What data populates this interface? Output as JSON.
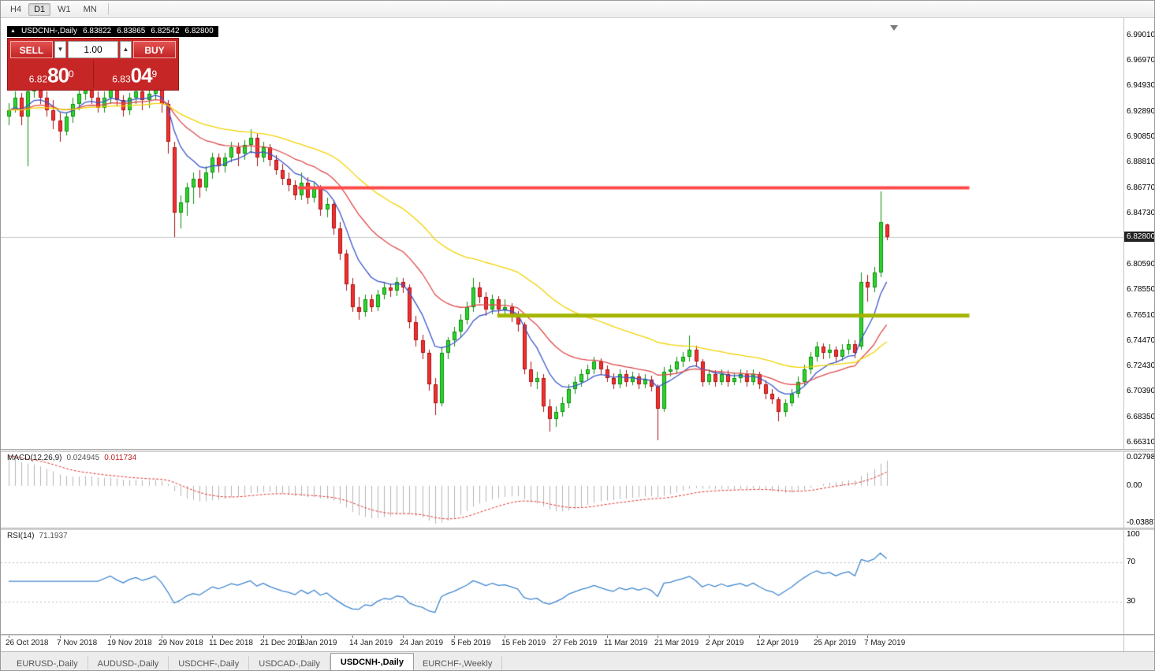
{
  "toolbar": {
    "timeframes": [
      {
        "label": "H4",
        "active": false
      },
      {
        "label": "D1",
        "active": true
      },
      {
        "label": "W1",
        "active": false
      },
      {
        "label": "MN",
        "active": false
      }
    ]
  },
  "chart": {
    "title": "USDCNH-,Daily",
    "open": "6.83822",
    "high": "6.83865",
    "low": "6.82542",
    "close": "6.82800",
    "current_price": "6.82800",
    "price_scale": [
      "6.99010",
      "6.96970",
      "6.94930",
      "6.92890",
      "6.90850",
      "6.88810",
      "6.86770",
      "6.84730",
      "6.80590",
      "6.78550",
      "6.76510",
      "6.74470",
      "6.72430",
      "6.70390",
      "6.68350",
      "6.66310"
    ]
  },
  "trade_panel": {
    "sell_label": "SELL",
    "buy_label": "BUY",
    "volume": "1.00",
    "spin_down": "▼",
    "spin_up": "▲",
    "sell": {
      "prefix": "6.82",
      "big": "80",
      "sup": "0"
    },
    "buy": {
      "prefix": "6.83",
      "big": "04",
      "sup": "9"
    }
  },
  "indicators": {
    "macd": {
      "label": "MACD(12,26,9)",
      "value_main": "0.024945",
      "value_signal": "0.011734",
      "scale_top": "0.027984",
      "scale_zero": "0.00",
      "scale_bottom": "-0.038874"
    },
    "rsi": {
      "label": "RSI(14)",
      "value": "71.1937",
      "scale_top": "100",
      "scale_upper": "70",
      "scale_lower": "30"
    }
  },
  "tabs": [
    {
      "label": "EURUSD-,Daily",
      "active": false
    },
    {
      "label": "AUDUSD-,Daily",
      "active": false
    },
    {
      "label": "USDCHF-,Daily",
      "active": false
    },
    {
      "label": "USDCAD-,Daily",
      "active": false
    },
    {
      "label": "USDCNH-,Daily",
      "active": true
    },
    {
      "label": "EURCHF-,Weekly",
      "active": false
    }
  ],
  "chart_data": {
    "type": "candlestick",
    "title": "USDCNH-,Daily",
    "symbol": "USDCNH",
    "timeframe": "Daily",
    "last_price": 6.828,
    "ylim": [
      6.6574,
      6.99895
    ],
    "colors": {
      "bull_fill": "#2ed42e",
      "bull_border": "#0a8f0a",
      "bear_fill": "#f23030",
      "bear_border": "#aa1111",
      "grid": "#c8c8c8",
      "macd_bar": "#b4b4b4",
      "macd_signal": "#e03232",
      "rsi_line": "#3f85cf",
      "level": "#bcbcbc"
    },
    "overlays": [
      {
        "name": "fast-ma",
        "type": "ema",
        "period": 8,
        "color": "#3c55cc"
      },
      {
        "name": "medium-ma",
        "type": "ema",
        "period": 21,
        "color": "#e04848"
      },
      {
        "name": "slow-ma",
        "type": "ema",
        "period": 45,
        "color": "#f2d200"
      }
    ],
    "hlines": [
      {
        "name": "resistance",
        "price": 6.8677,
        "color": "#ff4a4a",
        "width": 4,
        "from": 45.5,
        "to": 151
      },
      {
        "name": "support",
        "price": 6.7651,
        "color": "#a3b400",
        "width": 5,
        "from": 76.8,
        "to": 151
      }
    ],
    "macd": {
      "fast": 12,
      "slow": 26,
      "signal": 9
    },
    "rsi": {
      "period": 14,
      "levels": [
        70,
        30
      ]
    },
    "x_labels": [
      [
        "26 Oct 2018",
        0
      ],
      [
        "7 Nov 2018",
        8
      ],
      [
        "19 Nov 2018",
        16
      ],
      [
        "29 Nov 2018",
        24
      ],
      [
        "11 Dec 2018",
        32
      ],
      [
        "21 Dec 2018",
        40
      ],
      [
        "2 Jan 2019",
        46
      ],
      [
        "14 Jan 2019",
        54
      ],
      [
        "24 Jan 2019",
        62
      ],
      [
        "5 Feb 2019",
        70
      ],
      [
        "15 Feb 2019",
        78
      ],
      [
        "27 Feb 2019",
        86
      ],
      [
        "11 Mar 2019",
        94
      ],
      [
        "21 Mar 2019",
        102
      ],
      [
        "2 Apr 2019",
        110
      ],
      [
        "12 Apr 2019",
        118
      ],
      [
        "25 Apr 2019",
        127
      ],
      [
        "7 May 2019",
        135
      ]
    ],
    "candles": [
      [
        6.925,
        6.936,
        6.918,
        6.93
      ],
      [
        6.93,
        6.945,
        6.928,
        6.94
      ],
      [
        6.94,
        6.944,
        6.918,
        6.925
      ],
      [
        6.925,
        6.95,
        6.885,
        6.945
      ],
      [
        6.945,
        6.958,
        6.94,
        6.952
      ],
      [
        6.952,
        6.956,
        6.935,
        6.94
      ],
      [
        6.94,
        6.945,
        6.925,
        6.93
      ],
      [
        6.93,
        6.938,
        6.915,
        6.922
      ],
      [
        6.922,
        6.928,
        6.905,
        6.913
      ],
      [
        6.913,
        6.928,
        6.91,
        6.925
      ],
      [
        6.925,
        6.94,
        6.92,
        6.935
      ],
      [
        6.935,
        6.948,
        6.93,
        6.943
      ],
      [
        6.943,
        6.956,
        6.938,
        6.95
      ],
      [
        6.95,
        6.954,
        6.935,
        6.94
      ],
      [
        6.94,
        6.945,
        6.928,
        6.932
      ],
      [
        6.932,
        6.945,
        6.928,
        6.94
      ],
      [
        6.94,
        6.952,
        6.935,
        6.948
      ],
      [
        6.948,
        6.951,
        6.933,
        6.938
      ],
      [
        6.938,
        6.942,
        6.925,
        6.93
      ],
      [
        6.93,
        6.944,
        6.926,
        6.94
      ],
      [
        6.94,
        6.949,
        6.935,
        6.945
      ],
      [
        6.945,
        6.948,
        6.93,
        6.938
      ],
      [
        6.938,
        6.947,
        6.932,
        6.943
      ],
      [
        6.943,
        6.954,
        6.938,
        6.95
      ],
      [
        6.95,
        6.953,
        6.928,
        6.935
      ],
      [
        6.935,
        6.938,
        6.895,
        6.905
      ],
      [
        6.9,
        6.905,
        6.828,
        6.848
      ],
      [
        6.848,
        6.862,
        6.835,
        6.856
      ],
      [
        6.856,
        6.872,
        6.845,
        6.868
      ],
      [
        6.868,
        6.88,
        6.855,
        6.875
      ],
      [
        6.875,
        6.882,
        6.86,
        6.868
      ],
      [
        6.868,
        6.885,
        6.865,
        6.88
      ],
      [
        6.88,
        6.896,
        6.875,
        6.892
      ],
      [
        6.892,
        6.895,
        6.88,
        6.885
      ],
      [
        6.885,
        6.896,
        6.88,
        6.892
      ],
      [
        6.892,
        6.905,
        6.888,
        6.9
      ],
      [
        6.9,
        6.904,
        6.885,
        6.895
      ],
      [
        6.895,
        6.906,
        6.89,
        6.902
      ],
      [
        6.902,
        6.915,
        6.895,
        6.908
      ],
      [
        6.908,
        6.911,
        6.885,
        6.892
      ],
      [
        6.892,
        6.905,
        6.888,
        6.9
      ],
      [
        6.9,
        6.903,
        6.885,
        6.89
      ],
      [
        6.89,
        6.894,
        6.878,
        6.882
      ],
      [
        6.882,
        6.887,
        6.87,
        6.875
      ],
      [
        6.875,
        6.88,
        6.865,
        6.87
      ],
      [
        6.87,
        6.874,
        6.858,
        6.862
      ],
      [
        6.862,
        6.88,
        6.858,
        6.872
      ],
      [
        6.872,
        6.876,
        6.855,
        6.86
      ],
      [
        6.86,
        6.872,
        6.856,
        6.868
      ],
      [
        6.868,
        6.87,
        6.845,
        6.85
      ],
      [
        6.85,
        6.86,
        6.844,
        6.855
      ],
      [
        6.855,
        6.858,
        6.83,
        6.835
      ],
      [
        6.835,
        6.84,
        6.81,
        6.815
      ],
      [
        6.815,
        6.818,
        6.785,
        6.79
      ],
      [
        6.79,
        6.795,
        6.768,
        6.772
      ],
      [
        6.772,
        6.78,
        6.762,
        6.768
      ],
      [
        6.768,
        6.782,
        6.764,
        6.778
      ],
      [
        6.778,
        6.782,
        6.768,
        6.772
      ],
      [
        6.772,
        6.786,
        6.769,
        6.782
      ],
      [
        6.782,
        6.792,
        6.778,
        6.788
      ],
      [
        6.788,
        6.791,
        6.78,
        6.785
      ],
      [
        6.785,
        6.796,
        6.781,
        6.792
      ],
      [
        6.792,
        6.795,
        6.783,
        6.788
      ],
      [
        6.788,
        6.79,
        6.755,
        6.76
      ],
      [
        6.76,
        6.765,
        6.74,
        6.745
      ],
      [
        6.745,
        6.75,
        6.73,
        6.735
      ],
      [
        6.735,
        6.738,
        6.705,
        6.71
      ],
      [
        6.71,
        6.715,
        6.685,
        6.695
      ],
      [
        6.695,
        6.74,
        6.692,
        6.735
      ],
      [
        6.735,
        6.748,
        6.73,
        6.745
      ],
      [
        6.745,
        6.756,
        6.74,
        6.752
      ],
      [
        6.752,
        6.766,
        6.748,
        6.762
      ],
      [
        6.762,
        6.776,
        6.758,
        6.772
      ],
      [
        6.772,
        6.795,
        6.768,
        6.788
      ],
      [
        6.788,
        6.792,
        6.775,
        6.78
      ],
      [
        6.78,
        6.784,
        6.765,
        6.77
      ],
      [
        6.77,
        6.782,
        6.766,
        6.778
      ],
      [
        6.778,
        6.781,
        6.765,
        6.77
      ],
      [
        6.77,
        6.778,
        6.765,
        6.772
      ],
      [
        6.772,
        6.775,
        6.76,
        6.765
      ],
      [
        6.765,
        6.769,
        6.752,
        6.758
      ],
      [
        6.758,
        6.76,
        6.718,
        6.722
      ],
      [
        6.722,
        6.728,
        6.708,
        6.712
      ],
      [
        6.712,
        6.72,
        6.706,
        6.715
      ],
      [
        6.715,
        6.718,
        6.688,
        6.692
      ],
      [
        6.692,
        6.698,
        6.672,
        6.682
      ],
      [
        6.682,
        6.692,
        6.676,
        6.688
      ],
      [
        6.688,
        6.7,
        6.684,
        6.695
      ],
      [
        6.695,
        6.71,
        6.691,
        6.706
      ],
      [
        6.706,
        6.716,
        6.702,
        6.712
      ],
      [
        6.712,
        6.722,
        6.708,
        6.718
      ],
      [
        6.718,
        6.726,
        6.714,
        6.722
      ],
      [
        6.722,
        6.732,
        6.718,
        6.728
      ],
      [
        6.728,
        6.731,
        6.718,
        6.722
      ],
      [
        6.722,
        6.725,
        6.712,
        6.715
      ],
      [
        6.715,
        6.719,
        6.706,
        6.71
      ],
      [
        6.71,
        6.722,
        6.707,
        6.718
      ],
      [
        6.718,
        6.721,
        6.708,
        6.712
      ],
      [
        6.712,
        6.72,
        6.709,
        6.716
      ],
      [
        6.716,
        6.719,
        6.706,
        6.71
      ],
      [
        6.71,
        6.718,
        6.707,
        6.714
      ],
      [
        6.714,
        6.717,
        6.704,
        6.708
      ],
      [
        6.708,
        6.71,
        6.665,
        6.69
      ],
      [
        6.69,
        6.724,
        6.688,
        6.72
      ],
      [
        6.72,
        6.726,
        6.716,
        6.722
      ],
      [
        6.722,
        6.732,
        6.718,
        6.728
      ],
      [
        6.728,
        6.736,
        6.724,
        6.732
      ],
      [
        6.732,
        6.749,
        6.728,
        6.738
      ],
      [
        6.738,
        6.741,
        6.724,
        6.728
      ],
      [
        6.728,
        6.73,
        6.708,
        6.712
      ],
      [
        6.712,
        6.722,
        6.709,
        6.718
      ],
      [
        6.718,
        6.721,
        6.708,
        6.712
      ],
      [
        6.712,
        6.722,
        6.709,
        6.718
      ],
      [
        6.718,
        6.721,
        6.708,
        6.712
      ],
      [
        6.712,
        6.719,
        6.709,
        6.715
      ],
      [
        6.715,
        6.722,
        6.711,
        6.718
      ],
      [
        6.718,
        6.721,
        6.708,
        6.712
      ],
      [
        6.712,
        6.722,
        6.709,
        6.718
      ],
      [
        6.718,
        6.72,
        6.706,
        6.71
      ],
      [
        6.71,
        6.713,
        6.698,
        6.702
      ],
      [
        6.702,
        6.706,
        6.694,
        6.698
      ],
      [
        6.698,
        6.7,
        6.68,
        6.688
      ],
      [
        6.688,
        6.698,
        6.684,
        6.695
      ],
      [
        6.695,
        6.706,
        6.692,
        6.702
      ],
      [
        6.702,
        6.716,
        6.699,
        6.712
      ],
      [
        6.712,
        6.726,
        6.709,
        6.722
      ],
      [
        6.722,
        6.736,
        6.718,
        6.732
      ],
      [
        6.732,
        6.744,
        6.728,
        6.74
      ],
      [
        6.74,
        6.743,
        6.73,
        6.735
      ],
      [
        6.735,
        6.742,
        6.731,
        6.738
      ],
      [
        6.738,
        6.74,
        6.728,
        6.732
      ],
      [
        6.732,
        6.742,
        6.729,
        6.738
      ],
      [
        6.738,
        6.746,
        6.734,
        6.742
      ],
      [
        6.742,
        6.745,
        6.731,
        6.735
      ],
      [
        6.74,
        6.8,
        6.738,
        6.792
      ],
      [
        6.792,
        6.798,
        6.776,
        6.788
      ],
      [
        6.788,
        6.804,
        6.784,
        6.8
      ],
      [
        6.8,
        6.8646,
        6.796,
        6.84
      ],
      [
        6.8382,
        6.8387,
        6.8254,
        6.828
      ]
    ]
  }
}
